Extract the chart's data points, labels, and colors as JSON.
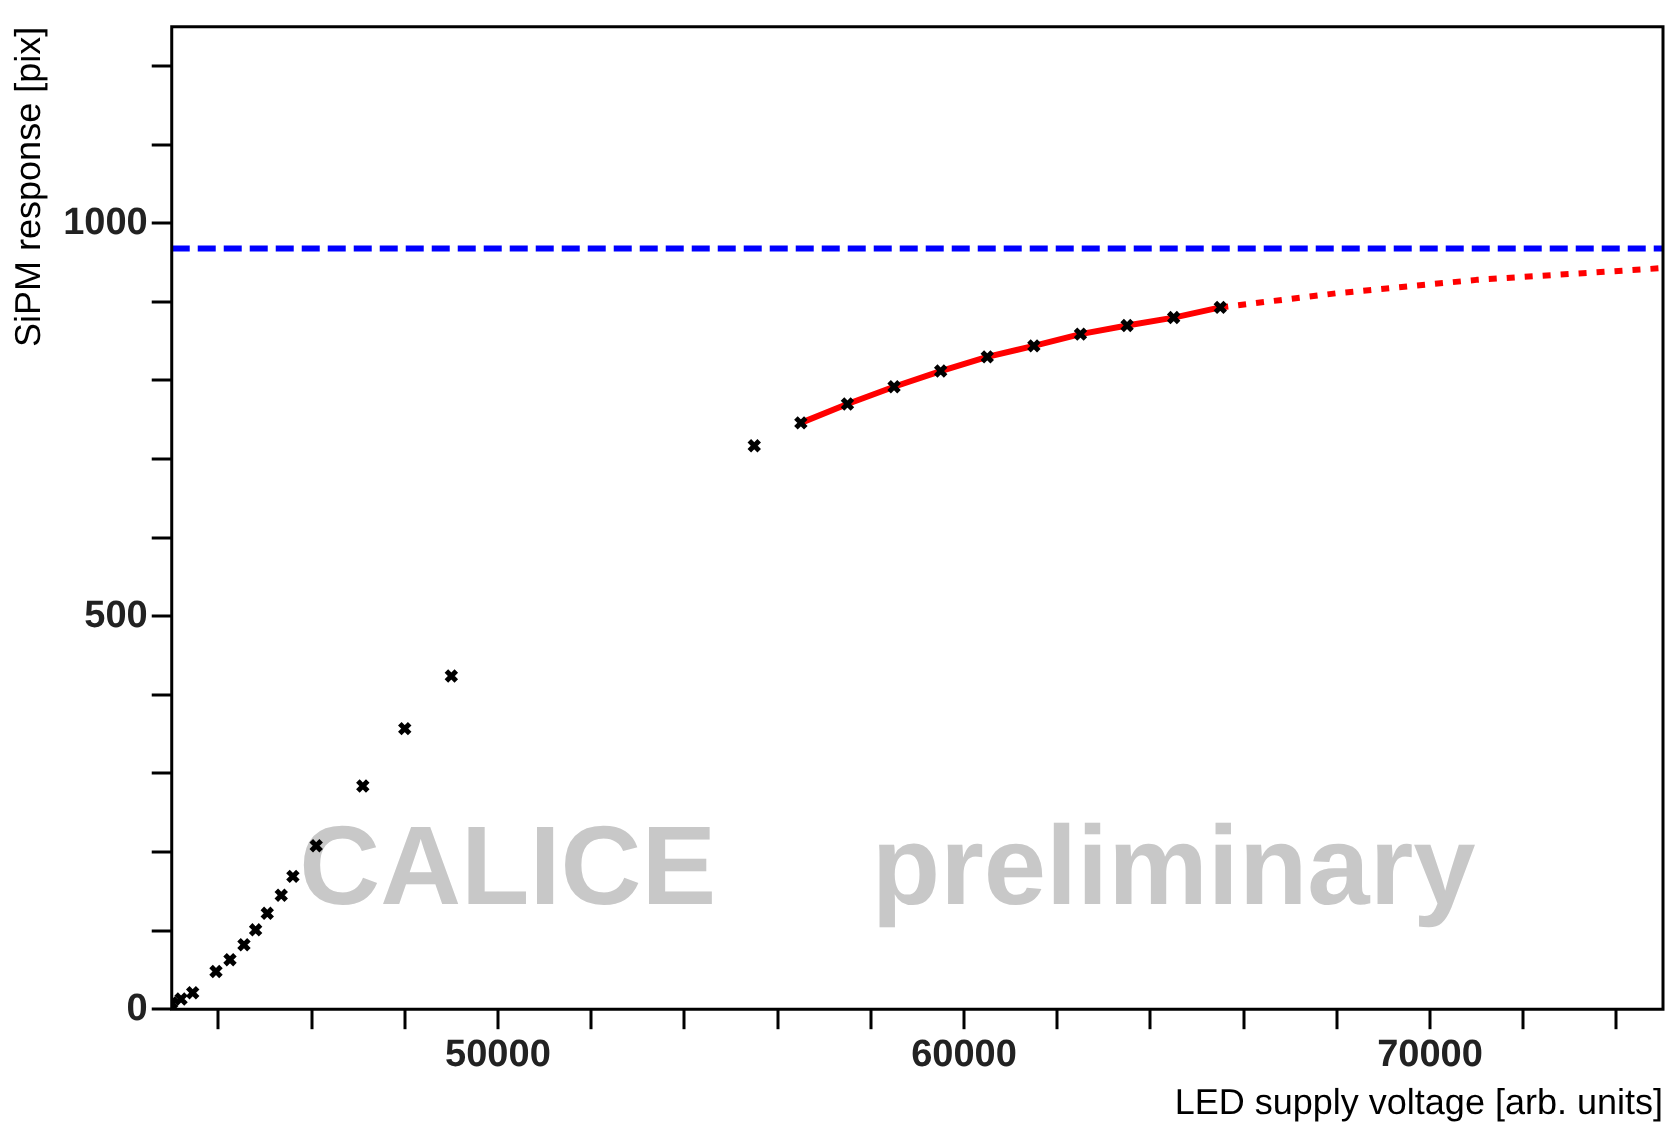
{
  "chart_data": {
    "type": "scatter",
    "xlabel": "LED supply voltage [arb. units]",
    "ylabel": "SiPM response [pix]",
    "xlim": [
      43000,
      75000
    ],
    "ylim": [
      0,
      1250
    ],
    "xticks": [
      {
        "value": 44000,
        "label": null
      },
      {
        "value": 46000,
        "label": null
      },
      {
        "value": 48000,
        "label": null
      },
      50000,
      {
        "value": 52000,
        "label": null
      },
      {
        "value": 54000,
        "label": null
      },
      {
        "value": 56000,
        "label": null
      },
      {
        "value": 58000,
        "label": null
      },
      60000,
      {
        "value": 62000,
        "label": null
      },
      {
        "value": 64000,
        "label": null
      },
      {
        "value": 66000,
        "label": null
      },
      {
        "value": 68000,
        "label": null
      },
      70000,
      {
        "value": 72000,
        "label": null
      },
      {
        "value": 74000,
        "label": null
      }
    ],
    "yticks": [
      0,
      {
        "value": 100,
        "label": null
      },
      {
        "value": 200,
        "label": null
      },
      {
        "value": 300,
        "label": null
      },
      {
        "value": 400,
        "label": null
      },
      500,
      {
        "value": 600,
        "label": null
      },
      {
        "value": 700,
        "label": null
      },
      {
        "value": 800,
        "label": null
      },
      {
        "value": 900,
        "label": null
      },
      1000,
      {
        "value": 1100,
        "label": null
      },
      {
        "value": 1200,
        "label": null
      }
    ],
    "grid": false,
    "legend": false,
    "marker": "cross",
    "series": [
      {
        "type": "line",
        "color": "#ff0000",
        "line_style": "solid",
        "marker": "none",
        "x": [
          56500,
          57500,
          58500,
          59500,
          60500,
          61500,
          62500,
          63500,
          64500,
          65500
        ],
        "values": [
          746,
          770,
          792,
          812,
          830,
          844,
          859,
          870,
          880,
          893
        ]
      },
      {
        "type": "line",
        "color": "#ff0000",
        "line_style": "dotted",
        "marker": "none",
        "x": [
          65500,
          68000,
          71000,
          75000
        ],
        "values": [
          893,
          911,
          928,
          943
        ]
      },
      {
        "type": "scatter",
        "color": "#000000",
        "x": [
          43000,
          43200,
          43450,
          43950,
          44250,
          44550,
          44800,
          45050,
          45350,
          45600,
          46100,
          47100,
          48000,
          49000,
          55500,
          56500,
          57500,
          58500,
          59500,
          60500,
          61500,
          62500,
          63500,
          64500,
          65500
        ],
        "values": [
          8,
          13,
          21,
          48,
          63,
          82,
          101,
          122,
          145,
          169,
          208,
          284,
          357,
          424,
          717,
          746,
          770,
          792,
          812,
          830,
          844,
          859,
          870,
          880,
          893
        ]
      }
    ],
    "ref_lines": [
      {
        "axis": "y",
        "value": 968,
        "color": "#0000ff",
        "line_style": "dashed"
      }
    ],
    "annotations": [
      "CALICE   preliminary"
    ]
  }
}
